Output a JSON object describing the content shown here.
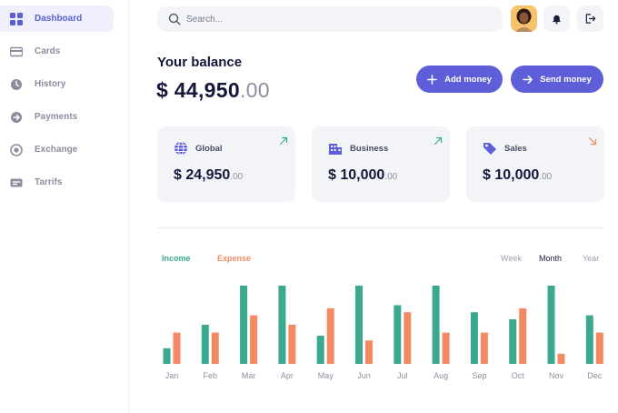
{
  "sidebar": {
    "items": [
      {
        "label": "Dashboard",
        "icon": "dashboard-grid-icon",
        "active": true
      },
      {
        "label": "Cards",
        "icon": "card-icon"
      },
      {
        "label": "History",
        "icon": "clock-icon"
      },
      {
        "label": "Payments",
        "icon": "arrow-circle-icon"
      },
      {
        "label": "Exchange",
        "icon": "exchange-icon"
      },
      {
        "label": "Tarrifs",
        "icon": "tariff-icon"
      }
    ]
  },
  "header": {
    "search_placeholder": "Search...",
    "icons": [
      "search-icon",
      "avatar",
      "bell-icon",
      "logout-icon"
    ]
  },
  "balance": {
    "label": "Your balance",
    "currency": "$",
    "amount": "44,950",
    "cents": ".00"
  },
  "actions": {
    "add_money": "Add money",
    "send_money": "Send money"
  },
  "cards": [
    {
      "title": "Global",
      "currency": "$",
      "amount": "24,950",
      "cents": ".00",
      "icon": "globe-icon",
      "trend": "up"
    },
    {
      "title": "Business",
      "currency": "$",
      "amount": "10,000",
      "cents": ".00",
      "icon": "building-icon",
      "trend": "up"
    },
    {
      "title": "Sales",
      "currency": "$",
      "amount": "10,000",
      "cents": ".00",
      "icon": "tag-icon",
      "trend": "down"
    }
  ],
  "chart": {
    "legend": {
      "income": "Income",
      "expense": "Expense"
    },
    "periods": [
      "Week",
      "Month",
      "Year"
    ],
    "active_period": "Month"
  },
  "colors": {
    "accent": "#5e5fd8",
    "income": "#3aa98f",
    "expense": "#f38a62",
    "trend_up": "#3aa98f",
    "trend_down": "#f08a55"
  },
  "chart_data": {
    "type": "bar",
    "categories": [
      "Jan",
      "Feb",
      "Mar",
      "Apr",
      "May",
      "Jun",
      "Jul",
      "Aug",
      "Sep",
      "Oct",
      "Nov",
      "Dec"
    ],
    "series": [
      {
        "name": "Income",
        "values": [
          20,
          50,
          100,
          100,
          36,
          100,
          75,
          100,
          66,
          57,
          100,
          62
        ]
      },
      {
        "name": "Expense",
        "values": [
          40,
          40,
          62,
          50,
          71,
          30,
          66,
          40,
          40,
          71,
          13,
          40
        ]
      }
    ],
    "ylim": [
      0,
      100
    ],
    "grid": false
  }
}
